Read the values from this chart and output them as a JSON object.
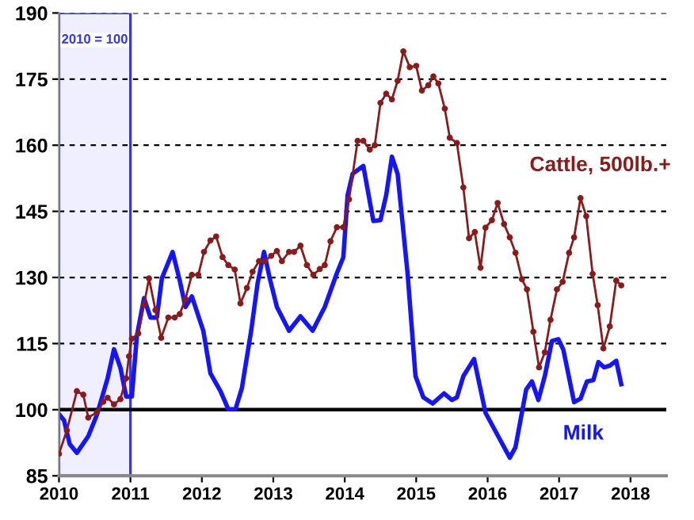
{
  "chart_data": {
    "type": "line",
    "xlim": [
      2010,
      2018.5
    ],
    "xticks": [
      2010,
      2011,
      2012,
      2013,
      2014,
      2015,
      2016,
      2017,
      2018
    ],
    "ylim": [
      85,
      190
    ],
    "yticks": [
      85,
      100,
      115,
      130,
      145,
      160,
      175,
      190
    ],
    "grid": "y",
    "ref_lines": [
      {
        "axis": "y",
        "value": 100,
        "color": "#000000"
      }
    ],
    "bands": [
      {
        "axis": "x",
        "from": 2010,
        "to": 2011,
        "label": "2010 = 100",
        "color": "#3333ff"
      }
    ],
    "series": [
      {
        "name": "Cattle, 500lb.+",
        "color": "#8b1a1a",
        "marker": "circle",
        "x": [
          2010,
          2010.11,
          2010.25,
          2010.34,
          2010.41,
          2010.53,
          2010.62,
          2010.68,
          2010.77,
          2010.86,
          2010.94,
          2010.98,
          2011.02,
          2011.11,
          2011.19,
          2011.26,
          2011.35,
          2011.43,
          2011.53,
          2011.62,
          2011.69,
          2011.77,
          2011.86,
          2011.95,
          2012.03,
          2012.12,
          2012.2,
          2012.29,
          2012.37,
          2012.46,
          2012.54,
          2012.63,
          2012.71,
          2012.8,
          2012.88,
          2012.97,
          2013.05,
          2013.12,
          2013.22,
          2013.29,
          2013.38,
          2013.47,
          2013.56,
          2013.65,
          2013.72,
          2013.8,
          2013.89,
          2013.98,
          2014.06,
          2014.18,
          2014.26,
          2014.35,
          2014.42,
          2014.5,
          2014.58,
          2014.66,
          2014.74,
          2014.82,
          2014.91,
          2015.0,
          2015.08,
          2015.17,
          2015.24,
          2015.31,
          2015.4,
          2015.47,
          2015.57,
          2015.66,
          2015.74,
          2015.82,
          2015.9,
          2015.97,
          2016.06,
          2016.14,
          2016.23,
          2016.31,
          2016.39,
          2016.48,
          2016.55,
          2016.64,
          2016.72,
          2016.8,
          2016.88,
          2016.97,
          2017.05,
          2017.14,
          2017.21,
          2017.3,
          2017.38,
          2017.47,
          2017.54,
          2017.62,
          2017.71,
          2017.8,
          2017.87
        ],
        "values": [
          90,
          95.3,
          104.2,
          103.4,
          98.2,
          99.4,
          101.8,
          102.7,
          101.2,
          102.4,
          107.1,
          112.1,
          116.1,
          117.3,
          123.8,
          129.8,
          122.6,
          116.3,
          120.9,
          120.9,
          121.7,
          125.1,
          130.6,
          130.6,
          135.8,
          138.4,
          139.3,
          134.6,
          132.8,
          131.8,
          124.1,
          127.6,
          131.3,
          133.7,
          133.7,
          134.9,
          136,
          133.7,
          135.8,
          135.8,
          137.2,
          132.8,
          130.6,
          131.9,
          132.8,
          138.2,
          141.4,
          141.4,
          147.7,
          161,
          161,
          159,
          160,
          169.6,
          171.7,
          170.4,
          174.6,
          181.3,
          177.7,
          178,
          172.4,
          173.6,
          175.6,
          174,
          168.3,
          161.7,
          160.5,
          150.4,
          138.9,
          140.3,
          132.2,
          141.3,
          143,
          146.9,
          142.1,
          139.1,
          135.6,
          129.6,
          127.3,
          117.7,
          109.6,
          113,
          120.4,
          127.3,
          129,
          135.6,
          139.1,
          148,
          143.9,
          130.8,
          123.7,
          113.9,
          118.9,
          129.3,
          128.2
        ]
      },
      {
        "name": "Milk",
        "color": "#1414ff",
        "x": [
          2010,
          2010.07,
          2010.15,
          2010.25,
          2010.41,
          2010.53,
          2010.68,
          2010.77,
          2010.86,
          2010.94,
          2011.02,
          2011.09,
          2011.19,
          2011.28,
          2011.37,
          2011.44,
          2011.59,
          2011.69,
          2011.77,
          2011.86,
          2012.02,
          2012.12,
          2012.26,
          2012.37,
          2012.47,
          2012.56,
          2012.69,
          2012.78,
          2012.87,
          2012.95,
          2013.05,
          2013.22,
          2013.38,
          2013.55,
          2013.72,
          2013.89,
          2013.98,
          2014.04,
          2014.11,
          2014.26,
          2014.4,
          2014.5,
          2014.58,
          2014.66,
          2014.74,
          2014.88,
          2014.99,
          2015.1,
          2015.23,
          2015.39,
          2015.5,
          2015.57,
          2015.66,
          2015.81,
          2015.97,
          2016.15,
          2016.31,
          2016.39,
          2016.54,
          2016.62,
          2016.71,
          2016.8,
          2016.9,
          2016.99,
          2017.06,
          2017.21,
          2017.3,
          2017.39,
          2017.48,
          2017.55,
          2017.63,
          2017.71,
          2017.8,
          2017.87
        ],
        "values": [
          99,
          97.6,
          92.2,
          90.2,
          94,
          98.8,
          107.1,
          113.7,
          109.5,
          103,
          103,
          116.7,
          125.3,
          120.9,
          120.9,
          129.8,
          135.8,
          129.3,
          123.3,
          125.7,
          117.9,
          108.2,
          104.2,
          100.1,
          100.1,
          104.9,
          117.9,
          128.7,
          135.8,
          129.8,
          123.3,
          117.9,
          121.2,
          117.9,
          123.3,
          131,
          134.6,
          148.7,
          153.5,
          155.3,
          142.8,
          143,
          148.7,
          157.4,
          153.5,
          130.8,
          107.6,
          102.8,
          101.4,
          103.7,
          102.2,
          102.8,
          107.6,
          111.5,
          99.3,
          93.9,
          89.1,
          91.5,
          104.6,
          106.4,
          102.2,
          107.6,
          115.6,
          116,
          113.6,
          101.7,
          102.5,
          106.4,
          106.7,
          110.8,
          109.6,
          110,
          111.1,
          105.8
        ]
      }
    ]
  }
}
